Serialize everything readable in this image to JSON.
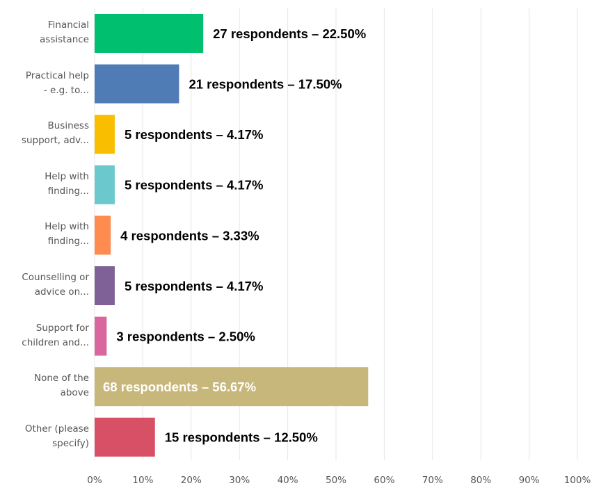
{
  "chart_data": {
    "type": "bar",
    "orientation": "horizontal",
    "categories": [
      "Financial\nassistance",
      "Practical help\n- e.g. to...",
      "Business\nsupport, adv...",
      "Help with\nfinding...",
      "Help with\nfinding...",
      "Counselling or\nadvice on...",
      "Support for\nchildren and...",
      "None of the\nabove",
      "Other (please\nspecify)"
    ],
    "values": [
      22.5,
      17.5,
      4.17,
      4.17,
      3.33,
      4.17,
      2.5,
      56.67,
      12.5
    ],
    "value_labels": [
      "27 respondents – 22.50%",
      "21 respondents – 17.50%",
      "5 respondents – 4.17%",
      "5 respondents – 4.17%",
      "4 respondents – 3.33%",
      "5 respondents – 4.17%",
      "3 respondents – 2.50%",
      "68 respondents – 56.67%",
      "15 respondents – 12.50%"
    ],
    "colors": [
      "#00bf6f",
      "#507cb6",
      "#f9be00",
      "#6bc8cd",
      "#ff8b4f",
      "#7f6197",
      "#d9679f",
      "#c8b77a",
      "#d75065"
    ],
    "xlim": [
      0,
      100
    ],
    "xticks": [
      {
        "value": 0,
        "label": "0%"
      },
      {
        "value": 10,
        "label": "10%"
      },
      {
        "value": 20,
        "label": "20%"
      },
      {
        "value": 30,
        "label": "30%"
      },
      {
        "value": 40,
        "label": "40%"
      },
      {
        "value": 50,
        "label": "50%"
      },
      {
        "value": 60,
        "label": "60%"
      },
      {
        "value": 70,
        "label": "70%"
      },
      {
        "value": 80,
        "label": "80%"
      },
      {
        "value": 90,
        "label": "90%"
      },
      {
        "value": 100,
        "label": "100%"
      }
    ],
    "grid": true
  }
}
